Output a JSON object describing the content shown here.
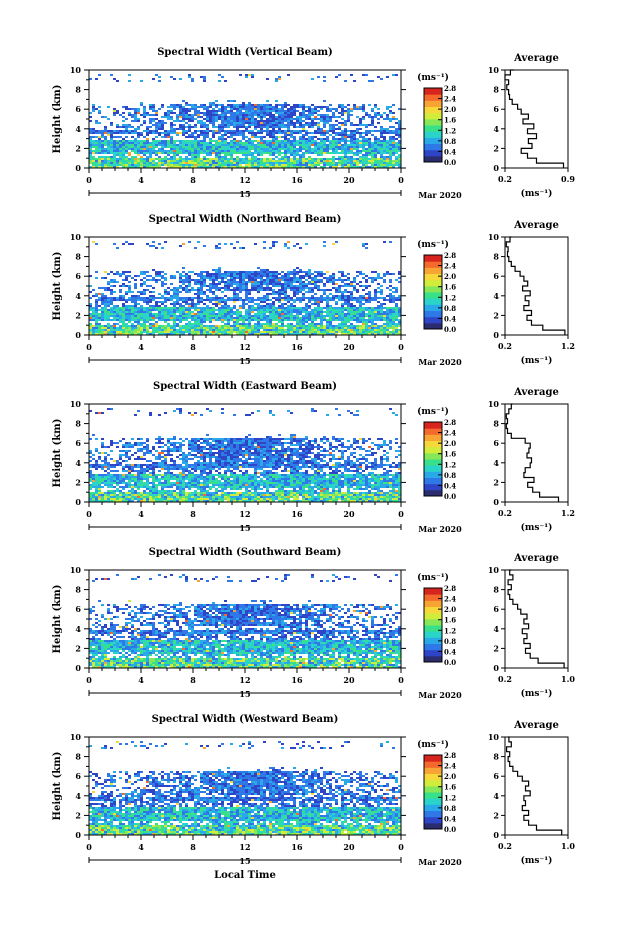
{
  "chart_data": {
    "type": "heatmap",
    "y_axis_label": "Height (km)",
    "x_axis_label": "Local Time",
    "units_label": "(ms⁻¹)",
    "average_title": "Average",
    "date_day": "15",
    "date_month_year": "Mar 2020",
    "x_ticks": [
      "0",
      "4",
      "8",
      "12",
      "16",
      "20",
      "0"
    ],
    "x_tick_values": [
      0,
      4,
      8,
      12,
      16,
      20,
      24
    ],
    "xlim": [
      0,
      24
    ],
    "y_ticks": [
      "0",
      "2",
      "4",
      "6",
      "8",
      "10"
    ],
    "y_tick_values": [
      0,
      2,
      4,
      6,
      8,
      10
    ],
    "ylim": [
      0,
      10
    ],
    "colorbar_labels": [
      "0.0",
      "0.4",
      "0.8",
      "1.2",
      "1.6",
      "2.0",
      "2.4",
      "2.8"
    ],
    "colorbar_range": [
      0,
      2.8
    ],
    "colorscale": [
      "#2a2c6e",
      "#2f45c8",
      "#2f78e8",
      "#29a9e8",
      "#2bd4c8",
      "#38e08a",
      "#86e858",
      "#d2ec3c",
      "#f6d83a",
      "#f8a434",
      "#f46a2c",
      "#d8241e"
    ],
    "panels": [
      {
        "title": "Spectral Width (Vertical Beam)",
        "avg_x_ticks": [
          "0.2",
          "0.9"
        ],
        "avg_xlim": [
          0.2,
          0.9
        ],
        "avg_profile": {
          "height": [
            0,
            0.5,
            1,
            1.5,
            2,
            2.5,
            3,
            3.5,
            4,
            4.5,
            5,
            5.5,
            6,
            6.5,
            7,
            7.5,
            8,
            8.5,
            9,
            9.5,
            10
          ],
          "value": [
            0.85,
            0.55,
            0.45,
            0.38,
            0.5,
            0.46,
            0.55,
            0.45,
            0.52,
            0.4,
            0.46,
            0.38,
            0.34,
            0.28,
            0.25,
            0.24,
            0.22,
            0.24,
            0.2,
            0.26,
            0.3
          ]
        }
      },
      {
        "title": "Spectral Width (Northward Beam)",
        "avg_x_ticks": [
          "0.2",
          "1.2"
        ],
        "avg_xlim": [
          0.2,
          1.2
        ],
        "avg_profile": {
          "height": [
            0,
            0.5,
            1,
            1.5,
            2,
            2.5,
            3,
            3.5,
            4,
            4.5,
            5,
            5.5,
            6,
            6.5,
            7,
            7.5,
            8,
            8.5,
            9,
            9.5,
            10
          ],
          "value": [
            1.15,
            0.8,
            0.62,
            0.55,
            0.62,
            0.5,
            0.58,
            0.52,
            0.6,
            0.48,
            0.56,
            0.5,
            0.44,
            0.36,
            0.3,
            0.26,
            0.24,
            0.25,
            0.22,
            0.28,
            0.3
          ]
        }
      },
      {
        "title": "Spectral Width (Eastward Beam)",
        "avg_x_ticks": [
          "0.2",
          "1.2"
        ],
        "avg_xlim": [
          0.2,
          1.2
        ],
        "avg_profile": {
          "height": [
            0,
            0.5,
            1,
            1.5,
            2,
            2.5,
            3,
            3.5,
            4,
            4.5,
            5,
            5.5,
            6,
            6.5,
            7,
            7.5,
            8,
            8.5,
            9,
            9.5,
            10
          ],
          "value": [
            1.05,
            0.75,
            0.64,
            0.56,
            0.66,
            0.5,
            0.52,
            0.6,
            0.62,
            0.55,
            0.58,
            0.6,
            0.52,
            0.3,
            0.24,
            0.22,
            0.24,
            0.22,
            0.26,
            0.3,
            0.32
          ]
        }
      },
      {
        "title": "Spectral Width (Southward Beam)",
        "avg_x_ticks": [
          "0.2",
          "1.0"
        ],
        "avg_xlim": [
          0.2,
          1.0
        ],
        "avg_profile": {
          "height": [
            0,
            0.5,
            1,
            1.5,
            2,
            2.5,
            3,
            3.5,
            4,
            4.5,
            5,
            5.5,
            6,
            6.5,
            7,
            7.5,
            8,
            8.5,
            9,
            9.5,
            10
          ],
          "value": [
            0.95,
            0.62,
            0.52,
            0.46,
            0.52,
            0.44,
            0.48,
            0.42,
            0.5,
            0.44,
            0.48,
            0.4,
            0.36,
            0.3,
            0.26,
            0.24,
            0.28,
            0.24,
            0.3,
            0.26,
            0.28
          ]
        }
      },
      {
        "title": "Spectral Width (Westward Beam)",
        "avg_x_ticks": [
          "0.2",
          "1.0"
        ],
        "avg_xlim": [
          0.2,
          1.0
        ],
        "avg_profile": {
          "height": [
            0,
            0.5,
            1,
            1.5,
            2,
            2.5,
            3,
            3.5,
            4,
            4.5,
            5,
            5.5,
            6,
            6.5,
            7,
            7.5,
            8,
            8.5,
            9,
            9.5,
            10
          ],
          "value": [
            0.92,
            0.6,
            0.5,
            0.44,
            0.5,
            0.42,
            0.46,
            0.44,
            0.52,
            0.46,
            0.5,
            0.42,
            0.36,
            0.3,
            0.26,
            0.24,
            0.26,
            0.22,
            0.28,
            0.25,
            0.26
          ]
        }
      }
    ]
  }
}
